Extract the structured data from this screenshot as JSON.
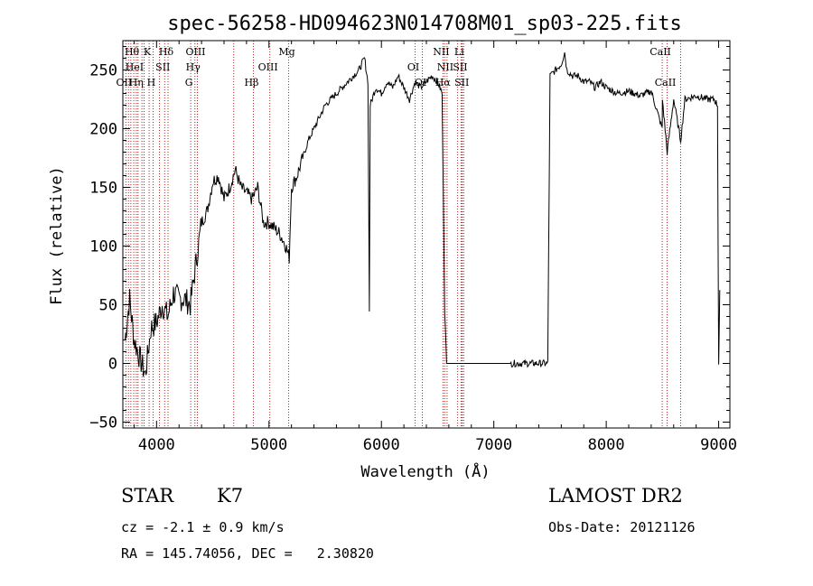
{
  "chart_data": {
    "type": "line",
    "title": "spec-56258-HD094623N014708M01_sp03-225.fits",
    "xlabel": "Wavelength (Å)",
    "ylabel": "Flux (relative)",
    "xlim": [
      3700,
      9100
    ],
    "ylim": [
      -55,
      275
    ],
    "xticks": [
      4000,
      5000,
      6000,
      7000,
      8000,
      9000
    ],
    "yticks": [
      -50,
      0,
      50,
      100,
      150,
      200,
      250
    ],
    "grid": false,
    "series": [
      {
        "x": [
          3720,
          3760,
          3800,
          3850,
          3900,
          3950,
          4000,
          4050,
          4100,
          4150,
          4200,
          4250,
          4300,
          4350,
          4400,
          4450,
          4500,
          4550,
          4600,
          4650,
          4700,
          4750,
          4800,
          4850,
          4900,
          4950,
          5000,
          5050,
          5100,
          5150,
          5180,
          5200,
          5250,
          5300,
          5350,
          5400,
          5450,
          5500,
          5550,
          5600,
          5650,
          5700,
          5750,
          5800,
          5850,
          5880,
          5893,
          5900,
          5950,
          6000,
          6050,
          6100,
          6150,
          6200,
          6250,
          6300,
          6350,
          6400,
          6450,
          6500,
          6540,
          6563,
          6580,
          6600,
          6700,
          6800,
          6900,
          7000,
          7100,
          7200,
          7300,
          7400,
          7480,
          7500,
          7550,
          7600,
          7630,
          7650,
          7700,
          7750,
          7800,
          7850,
          7900,
          7950,
          8000,
          8100,
          8200,
          8300,
          8400,
          8498,
          8500,
          8542,
          8600,
          8662,
          8700,
          8800,
          8900,
          8960,
          8990,
          9000,
          9010
        ],
        "y": [
          20,
          55,
          20,
          5,
          -10,
          30,
          35,
          50,
          40,
          60,
          55,
          55,
          50,
          85,
          120,
          130,
          155,
          160,
          140,
          150,
          165,
          150,
          145,
          140,
          150,
          120,
          120,
          115,
          110,
          100,
          90,
          150,
          160,
          175,
          190,
          200,
          210,
          220,
          225,
          230,
          235,
          240,
          245,
          250,
          260,
          240,
          45,
          220,
          235,
          230,
          240,
          235,
          245,
          235,
          225,
          240,
          235,
          240,
          245,
          240,
          230,
          45,
          0,
          0,
          0,
          0,
          0,
          0,
          0,
          0,
          0,
          0,
          0,
          245,
          250,
          255,
          265,
          250,
          245,
          245,
          240,
          240,
          235,
          240,
          235,
          230,
          232,
          228,
          232,
          200,
          225,
          180,
          225,
          190,
          225,
          228,
          225,
          225,
          220,
          0,
          60
        ]
      }
    ],
    "line_markers": [
      {
        "label": "Hθ",
        "x": 3797,
        "row": 1
      },
      {
        "label": "OII",
        "x": 3727,
        "row": 3
      },
      {
        "label": "HeI",
        "x": 3820,
        "row": 2
      },
      {
        "label": "Hη",
        "x": 3835,
        "row": 3
      },
      {
        "label": "K",
        "x": 3934,
        "row": 1
      },
      {
        "label": "H",
        "x": 3969,
        "row": 3
      },
      {
        "label": "SII",
        "x": 4072,
        "row": 2
      },
      {
        "label": "Hδ",
        "x": 4102,
        "row": 1
      },
      {
        "label": "OIII",
        "x": 4363,
        "row": 1
      },
      {
        "label": "Hγ",
        "x": 4341,
        "row": 2
      },
      {
        "label": "G",
        "x": 4304,
        "row": 3
      },
      {
        "label": "Hβ",
        "x": 4861,
        "row": 3
      },
      {
        "label": "OIII",
        "x": 5007,
        "row": 2
      },
      {
        "label": "Mg",
        "x": 5175,
        "row": 1
      },
      {
        "label": "OI",
        "x": 6300,
        "row": 2
      },
      {
        "label": "OI",
        "x": 6364,
        "row": 3
      },
      {
        "label": "NII",
        "x": 6548,
        "row": 1
      },
      {
        "label": "NII",
        "x": 6584,
        "row": 2
      },
      {
        "label": "Hα",
        "x": 6563,
        "row": 3
      },
      {
        "label": "Li",
        "x": 6708,
        "row": 1
      },
      {
        "label": "SII",
        "x": 6717,
        "row": 2
      },
      {
        "label": "SII",
        "x": 6731,
        "row": 3
      },
      {
        "label": "CaII",
        "x": 8498,
        "row": 1
      },
      {
        "label": "CaII",
        "x": 8542,
        "row": 3
      }
    ],
    "extra_marker_lines": [
      3750,
      3771,
      3889,
      3870,
      4026,
      4686,
      6678,
      6717,
      6731,
      8662
    ]
  },
  "info": {
    "class": "STAR",
    "subclass": "K7",
    "survey": "LAMOST DR2",
    "cz": "cz = -2.1 ± 0.9 km/s",
    "obs_date": "Obs-Date: 20121126",
    "radec": "RA = 145.74056, DEC =   2.30820"
  }
}
